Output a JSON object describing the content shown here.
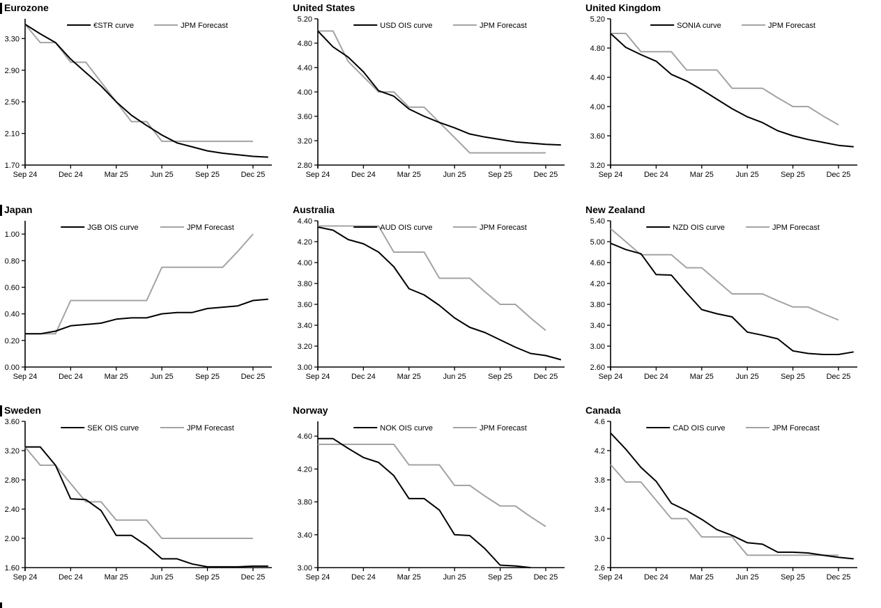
{
  "page": {
    "background": "#ffffff",
    "description_visible": "3x3 grid of policy-rate OIS curve charts vs JPM forecasts"
  },
  "colors": {
    "curve": "#000000",
    "forecast": "#a3a3a3",
    "axis": "#000000",
    "text": "#000000"
  },
  "x_axis": {
    "tick_labels": [
      "Sep 24",
      "Dec 24",
      "Mar 25",
      "Jun 25",
      "Sep 25",
      "Dec 25"
    ],
    "tick_month_positions": [
      0,
      3,
      6,
      9,
      12,
      15
    ],
    "months_span": 16
  },
  "footer": {
    "partial_section_bar": true
  },
  "chart_data": [
    {
      "type": "line",
      "title": "Eurozone",
      "section_bar": true,
      "ylim": [
        1.7,
        3.55
      ],
      "ytick_labels": [
        "1.70",
        "2.10",
        "2.50",
        "2.90",
        "3.30"
      ],
      "legend_position": "top-center",
      "series": [
        {
          "name": "€STR curve",
          "role": "market-curve",
          "color": "#000000",
          "monthly_values_from_sep24": [
            3.48,
            3.36,
            3.25,
            3.04,
            2.87,
            2.7,
            2.5,
            2.33,
            2.2,
            2.08,
            1.98,
            1.93,
            1.88,
            1.85,
            1.83,
            1.81,
            1.8
          ]
        },
        {
          "name": "JPM Forecast",
          "role": "forecast",
          "color": "#a3a3a3",
          "monthly_values_from_sep24": [
            3.48,
            3.25,
            3.25,
            3.0,
            3.0,
            2.75,
            2.5,
            2.25,
            2.25,
            2.0,
            2.0,
            2.0,
            2.0,
            2.0,
            2.0,
            2.0
          ]
        }
      ]
    },
    {
      "type": "line",
      "title": "United States",
      "section_bar": false,
      "ylim": [
        2.8,
        5.2
      ],
      "ytick_labels": [
        "2.80",
        "3.20",
        "3.60",
        "4.00",
        "4.40",
        "4.80",
        "5.20"
      ],
      "legend_position": "top-center",
      "series": [
        {
          "name": "USD OIS curve",
          "role": "market-curve",
          "color": "#000000",
          "monthly_values_from_sep24": [
            5.0,
            4.74,
            4.57,
            4.33,
            4.02,
            3.93,
            3.72,
            3.6,
            3.5,
            3.41,
            3.31,
            3.26,
            3.22,
            3.18,
            3.16,
            3.14,
            3.13
          ]
        },
        {
          "name": "JPM Forecast",
          "role": "forecast",
          "color": "#a3a3a3",
          "monthly_values_from_sep24": [
            5.0,
            5.0,
            4.5,
            4.25,
            4.0,
            4.0,
            3.75,
            3.75,
            3.5,
            3.25,
            3.0,
            3.0,
            3.0,
            3.0,
            3.0,
            3.0
          ]
        }
      ]
    },
    {
      "type": "line",
      "title": "United Kingdom",
      "section_bar": false,
      "ylim": [
        3.2,
        5.2
      ],
      "ytick_labels": [
        "3.20",
        "3.60",
        "4.00",
        "4.40",
        "4.80",
        "5.20"
      ],
      "legend_position": "top-center",
      "series": [
        {
          "name": "SONIA curve",
          "role": "market-curve",
          "color": "#000000",
          "monthly_values_from_sep24": [
            5.0,
            4.81,
            4.71,
            4.62,
            4.44,
            4.35,
            4.23,
            4.1,
            3.97,
            3.86,
            3.78,
            3.67,
            3.6,
            3.55,
            3.51,
            3.47,
            3.45
          ]
        },
        {
          "name": "JPM Forecast",
          "role": "forecast",
          "color": "#a3a3a3",
          "monthly_values_from_sep24": [
            5.0,
            5.0,
            4.75,
            4.75,
            4.75,
            4.5,
            4.5,
            4.5,
            4.25,
            4.25,
            4.25,
            4.12,
            4.0,
            4.0,
            3.87,
            3.75
          ]
        }
      ]
    },
    {
      "type": "line",
      "title": "Japan",
      "section_bar": true,
      "ylim": [
        0.0,
        1.1
      ],
      "ytick_labels": [
        "0.00",
        "0.20",
        "0.40",
        "0.60",
        "0.80",
        "1.00"
      ],
      "legend_position": "top-center",
      "series": [
        {
          "name": "JGB OIS curve",
          "role": "market-curve",
          "color": "#000000",
          "monthly_values_from_sep24": [
            0.25,
            0.25,
            0.27,
            0.31,
            0.32,
            0.33,
            0.36,
            0.37,
            0.37,
            0.4,
            0.41,
            0.41,
            0.44,
            0.45,
            0.46,
            0.5,
            0.51
          ]
        },
        {
          "name": "JPM Forecast",
          "role": "forecast",
          "color": "#a3a3a3",
          "monthly_values_from_sep24": [
            0.25,
            0.25,
            0.25,
            0.5,
            0.5,
            0.5,
            0.5,
            0.5,
            0.5,
            0.75,
            0.75,
            0.75,
            0.75,
            0.75,
            0.87,
            1.0
          ]
        }
      ]
    },
    {
      "type": "line",
      "title": "Australia",
      "section_bar": false,
      "ylim": [
        3.0,
        4.4
      ],
      "ytick_labels": [
        "3.00",
        "3.20",
        "3.40",
        "3.60",
        "3.80",
        "4.00",
        "4.20",
        "4.40"
      ],
      "legend_position": "top-center",
      "series": [
        {
          "name": "AUD OIS curve",
          "role": "market-curve",
          "color": "#000000",
          "monthly_values_from_sep24": [
            4.34,
            4.31,
            4.22,
            4.18,
            4.1,
            3.96,
            3.75,
            3.69,
            3.59,
            3.47,
            3.38,
            3.33,
            3.26,
            3.19,
            3.13,
            3.11,
            3.07
          ]
        },
        {
          "name": "JPM Forecast",
          "role": "forecast",
          "color": "#a3a3a3",
          "monthly_values_from_sep24": [
            4.35,
            4.35,
            4.35,
            4.35,
            4.35,
            4.1,
            4.1,
            4.1,
            3.85,
            3.85,
            3.85,
            3.72,
            3.6,
            3.6,
            3.47,
            3.35
          ]
        }
      ]
    },
    {
      "type": "line",
      "title": "New Zealand",
      "section_bar": false,
      "ylim": [
        2.6,
        5.4
      ],
      "ytick_labels": [
        "2.60",
        "3.00",
        "3.40",
        "3.80",
        "4.20",
        "4.60",
        "5.00",
        "5.40"
      ],
      "legend_position": "top-center",
      "series": [
        {
          "name": "NZD OIS curve",
          "role": "market-curve",
          "color": "#000000",
          "monthly_values_from_sep24": [
            4.97,
            4.85,
            4.77,
            4.37,
            4.36,
            4.02,
            3.7,
            3.62,
            3.56,
            3.27,
            3.21,
            3.14,
            2.91,
            2.86,
            2.84,
            2.84,
            2.89
          ]
        },
        {
          "name": "JPM Forecast",
          "role": "forecast",
          "color": "#a3a3a3",
          "monthly_values_from_sep24": [
            5.25,
            5.0,
            4.75,
            4.75,
            4.75,
            4.5,
            4.5,
            4.25,
            4.0,
            4.0,
            4.0,
            3.87,
            3.75,
            3.75,
            3.62,
            3.5
          ]
        }
      ]
    },
    {
      "type": "line",
      "title": "Sweden",
      "section_bar": true,
      "ylim": [
        1.6,
        3.6
      ],
      "ytick_labels": [
        "1.60",
        "2.00",
        "2.40",
        "2.80",
        "3.20",
        "3.60"
      ],
      "legend_position": "top-center",
      "series": [
        {
          "name": "SEK OIS curve",
          "role": "market-curve",
          "color": "#000000",
          "monthly_values_from_sep24": [
            3.25,
            3.25,
            3.0,
            2.54,
            2.53,
            2.38,
            2.04,
            2.04,
            1.9,
            1.72,
            1.72,
            1.65,
            1.61,
            1.61,
            1.61,
            1.62,
            1.62
          ]
        },
        {
          "name": "JPM Forecast",
          "role": "forecast",
          "color": "#a3a3a3",
          "monthly_values_from_sep24": [
            3.25,
            3.0,
            3.0,
            2.75,
            2.5,
            2.5,
            2.25,
            2.25,
            2.25,
            2.0,
            2.0,
            2.0,
            2.0,
            2.0,
            2.0,
            2.0
          ]
        }
      ]
    },
    {
      "type": "line",
      "title": "Norway",
      "section_bar": false,
      "ylim": [
        3.0,
        4.78
      ],
      "ytick_labels": [
        "3.00",
        "3.40",
        "3.80",
        "4.20",
        "4.60"
      ],
      "legend_position": "top-center",
      "series": [
        {
          "name": "NOK OIS curve",
          "role": "market-curve",
          "color": "#000000",
          "monthly_values_from_sep24": [
            4.57,
            4.57,
            4.45,
            4.34,
            4.28,
            4.12,
            3.84,
            3.84,
            3.7,
            3.4,
            3.39,
            3.23,
            3.03,
            3.02,
            3.0
          ]
        },
        {
          "name": "JPM Forecast",
          "role": "forecast",
          "color": "#a3a3a3",
          "monthly_values_from_sep24": [
            4.5,
            4.5,
            4.5,
            4.5,
            4.5,
            4.5,
            4.25,
            4.25,
            4.25,
            4.0,
            4.0,
            3.87,
            3.75,
            3.75,
            3.62,
            3.5
          ]
        }
      ]
    },
    {
      "type": "line",
      "title": "Canada",
      "section_bar": false,
      "ylim": [
        2.6,
        4.6
      ],
      "ytick_labels": [
        "2.6",
        "3.0",
        "3.4",
        "3.8",
        "4.2",
        "4.6"
      ],
      "legend_position": "top-center",
      "series": [
        {
          "name": "CAD OIS curve",
          "role": "market-curve",
          "color": "#000000",
          "monthly_values_from_sep24": [
            4.44,
            4.22,
            3.97,
            3.78,
            3.48,
            3.38,
            3.26,
            3.12,
            3.04,
            2.94,
            2.92,
            2.81,
            2.81,
            2.8,
            2.77,
            2.74,
            2.72
          ]
        },
        {
          "name": "JPM Forecast",
          "role": "forecast",
          "color": "#a3a3a3",
          "monthly_values_from_sep24": [
            4.01,
            3.77,
            3.77,
            3.52,
            3.27,
            3.27,
            3.02,
            3.02,
            3.02,
            2.77,
            2.77,
            2.77,
            2.77,
            2.77,
            2.77,
            2.77
          ]
        }
      ]
    }
  ]
}
